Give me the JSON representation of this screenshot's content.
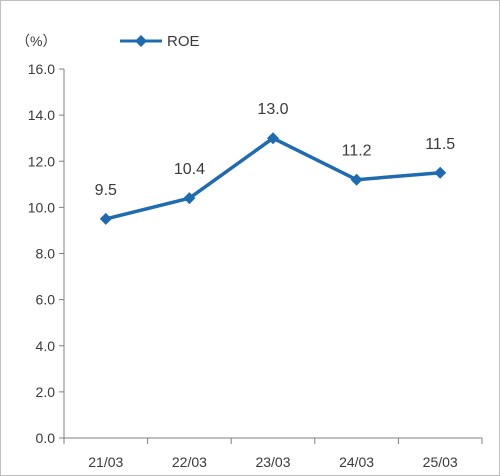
{
  "chart_data": {
    "type": "line",
    "title": "",
    "xlabel": "",
    "ylabel": "",
    "unit": "（%）",
    "categories": [
      "21/03",
      "22/03",
      "23/03",
      "24/03",
      "25/03"
    ],
    "ylim": [
      0,
      16
    ],
    "yticks": [
      "0.0",
      "2.0",
      "4.0",
      "6.0",
      "8.0",
      "10.0",
      "12.0",
      "14.0",
      "16.0"
    ],
    "grid": false,
    "legend": "top-left",
    "series": [
      {
        "name": "ROE",
        "values": [
          9.5,
          10.4,
          13.0,
          11.2,
          11.5
        ],
        "labels": [
          "9.5",
          "10.4",
          "13.0",
          "11.2",
          "11.5"
        ],
        "color": "#1f6bb0",
        "marker": "diamond"
      }
    ]
  }
}
